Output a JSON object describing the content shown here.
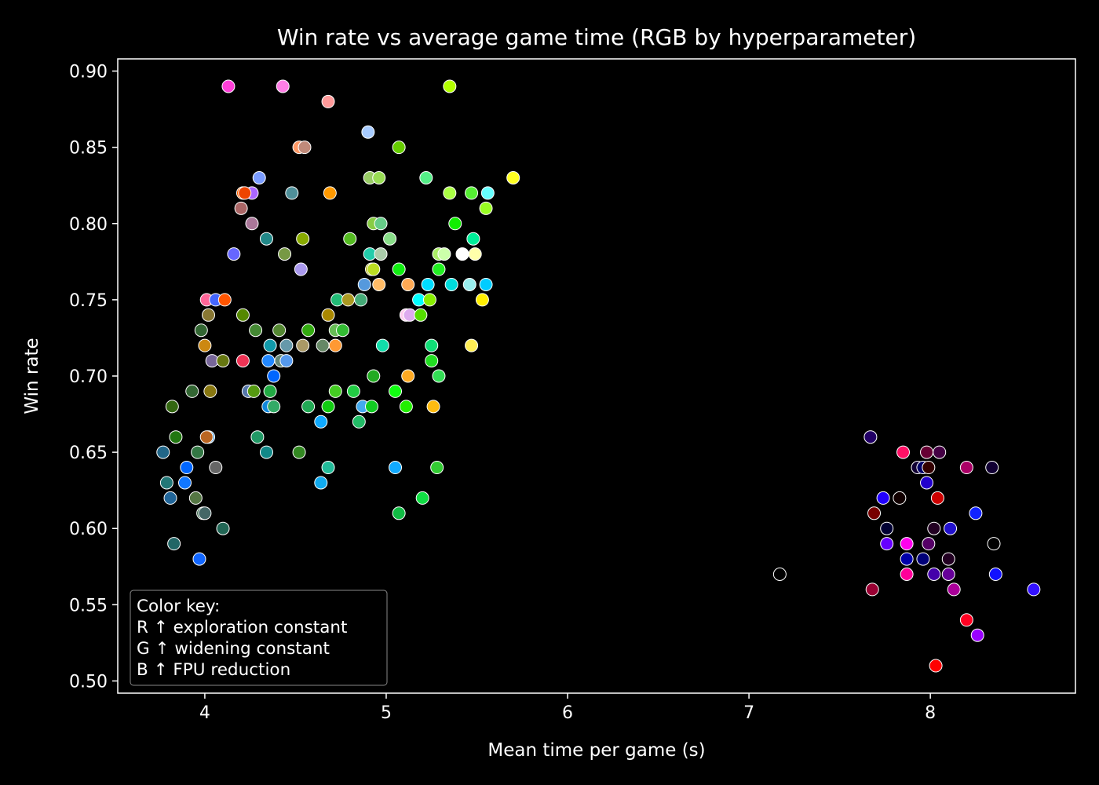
{
  "chart_data": {
    "type": "scatter",
    "title": "Win rate vs average game time (RGB by hyperparameter)",
    "xlabel": "Mean time per game (s)",
    "ylabel": "Win rate",
    "xlim": [
      3.52,
      8.8
    ],
    "ylim": [
      0.492,
      0.908
    ],
    "xticks": [
      4,
      5,
      6,
      7,
      8
    ],
    "yticks": [
      0.5,
      0.55,
      0.6,
      0.65,
      0.7,
      0.75,
      0.8,
      0.85,
      0.9
    ],
    "grid": false,
    "background": "#000000",
    "axis_color": "#ffffff",
    "marker_edge_color": "#ffffff",
    "legend": {
      "placement": "lower-left",
      "lines": [
        "Color key:",
        "R ↑ exploration constant",
        "G ↑ widening constant",
        "B ↑ FPU reduction"
      ]
    },
    "points": [
      {
        "x": 4.13,
        "y": 0.89,
        "color": "#ff3fd9"
      },
      {
        "x": 4.43,
        "y": 0.89,
        "color": "#ff7fe6"
      },
      {
        "x": 4.68,
        "y": 0.88,
        "color": "#ff9a9a"
      },
      {
        "x": 5.35,
        "y": 0.89,
        "color": "#b3ff00"
      },
      {
        "x": 4.9,
        "y": 0.86,
        "color": "#a8ccff"
      },
      {
        "x": 4.52,
        "y": 0.85,
        "color": "#ff9966"
      },
      {
        "x": 4.55,
        "y": 0.85,
        "color": "#c08a7a"
      },
      {
        "x": 5.07,
        "y": 0.85,
        "color": "#66cc00"
      },
      {
        "x": 4.3,
        "y": 0.83,
        "color": "#7a9cff"
      },
      {
        "x": 4.91,
        "y": 0.83,
        "color": "#99cc66"
      },
      {
        "x": 4.96,
        "y": 0.83,
        "color": "#99dd55"
      },
      {
        "x": 5.22,
        "y": 0.83,
        "color": "#55ee88"
      },
      {
        "x": 5.7,
        "y": 0.83,
        "color": "#ffff22"
      },
      {
        "x": 4.21,
        "y": 0.82,
        "color": "#ff6600"
      },
      {
        "x": 4.26,
        "y": 0.82,
        "color": "#aa66ff"
      },
      {
        "x": 4.22,
        "y": 0.82,
        "color": "#ee4400"
      },
      {
        "x": 4.48,
        "y": 0.82,
        "color": "#4f8f99"
      },
      {
        "x": 4.69,
        "y": 0.82,
        "color": "#ff9900"
      },
      {
        "x": 5.35,
        "y": 0.82,
        "color": "#aaff44"
      },
      {
        "x": 5.47,
        "y": 0.82,
        "color": "#55ee33"
      },
      {
        "x": 5.56,
        "y": 0.82,
        "color": "#66ffff"
      },
      {
        "x": 4.2,
        "y": 0.81,
        "color": "#aa6666"
      },
      {
        "x": 5.55,
        "y": 0.81,
        "color": "#99ff22"
      },
      {
        "x": 4.26,
        "y": 0.8,
        "color": "#aa7799"
      },
      {
        "x": 4.93,
        "y": 0.8,
        "color": "#88cc44"
      },
      {
        "x": 4.97,
        "y": 0.8,
        "color": "#66cc88"
      },
      {
        "x": 5.38,
        "y": 0.8,
        "color": "#11ee00"
      },
      {
        "x": 4.34,
        "y": 0.79,
        "color": "#228888"
      },
      {
        "x": 4.54,
        "y": 0.79,
        "color": "#88aa00"
      },
      {
        "x": 4.8,
        "y": 0.79,
        "color": "#55bb22"
      },
      {
        "x": 5.02,
        "y": 0.79,
        "color": "#88dd88"
      },
      {
        "x": 5.48,
        "y": 0.79,
        "color": "#00ee99"
      },
      {
        "x": 4.16,
        "y": 0.78,
        "color": "#6666ff"
      },
      {
        "x": 4.44,
        "y": 0.78,
        "color": "#779944"
      },
      {
        "x": 4.91,
        "y": 0.78,
        "color": "#22ccaa"
      },
      {
        "x": 4.97,
        "y": 0.78,
        "color": "#aaccaa"
      },
      {
        "x": 5.29,
        "y": 0.78,
        "color": "#aaee66"
      },
      {
        "x": 5.32,
        "y": 0.78,
        "color": "#ccffaa"
      },
      {
        "x": 5.42,
        "y": 0.78,
        "color": "#ffffff"
      },
      {
        "x": 5.49,
        "y": 0.78,
        "color": "#ffffaa"
      },
      {
        "x": 4.53,
        "y": 0.77,
        "color": "#aa99ee"
      },
      {
        "x": 4.92,
        "y": 0.77,
        "color": "#aaaa00"
      },
      {
        "x": 4.93,
        "y": 0.77,
        "color": "#bbdd22"
      },
      {
        "x": 5.07,
        "y": 0.77,
        "color": "#11ee11"
      },
      {
        "x": 5.29,
        "y": 0.77,
        "color": "#22ee22"
      },
      {
        "x": 4.88,
        "y": 0.76,
        "color": "#5599dd"
      },
      {
        "x": 4.96,
        "y": 0.76,
        "color": "#ffbb66"
      },
      {
        "x": 5.12,
        "y": 0.76,
        "color": "#ffaa55"
      },
      {
        "x": 5.23,
        "y": 0.76,
        "color": "#00ddff"
      },
      {
        "x": 5.36,
        "y": 0.76,
        "color": "#00dddd"
      },
      {
        "x": 5.46,
        "y": 0.76,
        "color": "#99eeee"
      },
      {
        "x": 5.55,
        "y": 0.76,
        "color": "#00ccff"
      },
      {
        "x": 4.01,
        "y": 0.75,
        "color": "#ff6699"
      },
      {
        "x": 4.06,
        "y": 0.75,
        "color": "#4466ff"
      },
      {
        "x": 4.11,
        "y": 0.75,
        "color": "#ff5500"
      },
      {
        "x": 4.73,
        "y": 0.75,
        "color": "#22bb77"
      },
      {
        "x": 4.79,
        "y": 0.75,
        "color": "#aa9922"
      },
      {
        "x": 4.86,
        "y": 0.75,
        "color": "#44aa77"
      },
      {
        "x": 5.18,
        "y": 0.75,
        "color": "#00ffff"
      },
      {
        "x": 5.24,
        "y": 0.75,
        "color": "#88ee00"
      },
      {
        "x": 5.53,
        "y": 0.75,
        "color": "#ffee00"
      },
      {
        "x": 4.02,
        "y": 0.74,
        "color": "#887733"
      },
      {
        "x": 4.21,
        "y": 0.74,
        "color": "#558800"
      },
      {
        "x": 4.68,
        "y": 0.74,
        "color": "#aa8800"
      },
      {
        "x": 5.11,
        "y": 0.74,
        "color": "#ffccee"
      },
      {
        "x": 5.13,
        "y": 0.74,
        "color": "#ddaaee"
      },
      {
        "x": 5.19,
        "y": 0.74,
        "color": "#55dd00"
      },
      {
        "x": 3.98,
        "y": 0.73,
        "color": "#336633"
      },
      {
        "x": 4.28,
        "y": 0.73,
        "color": "#448833"
      },
      {
        "x": 4.41,
        "y": 0.73,
        "color": "#558833"
      },
      {
        "x": 4.57,
        "y": 0.73,
        "color": "#33aa11"
      },
      {
        "x": 4.72,
        "y": 0.73,
        "color": "#66bb55"
      },
      {
        "x": 4.76,
        "y": 0.73,
        "color": "#33bb33"
      },
      {
        "x": 4.0,
        "y": 0.72,
        "color": "#cc8811"
      },
      {
        "x": 4.36,
        "y": 0.72,
        "color": "#1199aa"
      },
      {
        "x": 4.45,
        "y": 0.72,
        "color": "#6699aa"
      },
      {
        "x": 4.54,
        "y": 0.72,
        "color": "#aa9966"
      },
      {
        "x": 4.65,
        "y": 0.72,
        "color": "#668866"
      },
      {
        "x": 4.72,
        "y": 0.72,
        "color": "#ff9933"
      },
      {
        "x": 4.98,
        "y": 0.72,
        "color": "#11ddaa"
      },
      {
        "x": 5.25,
        "y": 0.72,
        "color": "#11dd77"
      },
      {
        "x": 5.47,
        "y": 0.72,
        "color": "#ffee55"
      },
      {
        "x": 4.04,
        "y": 0.71,
        "color": "#776699"
      },
      {
        "x": 4.1,
        "y": 0.71,
        "color": "#667711"
      },
      {
        "x": 4.21,
        "y": 0.71,
        "color": "#ee3355"
      },
      {
        "x": 4.35,
        "y": 0.71,
        "color": "#2288ff"
      },
      {
        "x": 4.42,
        "y": 0.71,
        "color": "#668877"
      },
      {
        "x": 4.45,
        "y": 0.71,
        "color": "#5599ee"
      },
      {
        "x": 5.25,
        "y": 0.71,
        "color": "#22dd22"
      },
      {
        "x": 4.38,
        "y": 0.7,
        "color": "#0066ff"
      },
      {
        "x": 4.93,
        "y": 0.7,
        "color": "#22aa22"
      },
      {
        "x": 5.12,
        "y": 0.7,
        "color": "#ffaa22"
      },
      {
        "x": 5.29,
        "y": 0.7,
        "color": "#33dd55"
      },
      {
        "x": 3.93,
        "y": 0.69,
        "color": "#336633"
      },
      {
        "x": 4.03,
        "y": 0.69,
        "color": "#887711"
      },
      {
        "x": 4.24,
        "y": 0.69,
        "color": "#5577aa"
      },
      {
        "x": 4.27,
        "y": 0.69,
        "color": "#559911"
      },
      {
        "x": 4.36,
        "y": 0.69,
        "color": "#22aa44"
      },
      {
        "x": 4.72,
        "y": 0.69,
        "color": "#44cc22"
      },
      {
        "x": 4.82,
        "y": 0.69,
        "color": "#22cc44"
      },
      {
        "x": 5.05,
        "y": 0.69,
        "color": "#11ff11"
      },
      {
        "x": 3.82,
        "y": 0.68,
        "color": "#336611"
      },
      {
        "x": 4.35,
        "y": 0.68,
        "color": "#1188dd"
      },
      {
        "x": 4.38,
        "y": 0.68,
        "color": "#33aa66"
      },
      {
        "x": 4.57,
        "y": 0.68,
        "color": "#22aa55"
      },
      {
        "x": 4.68,
        "y": 0.68,
        "color": "#11cc11"
      },
      {
        "x": 4.87,
        "y": 0.68,
        "color": "#44aaee"
      },
      {
        "x": 4.92,
        "y": 0.68,
        "color": "#11cc22"
      },
      {
        "x": 5.11,
        "y": 0.68,
        "color": "#22ee00"
      },
      {
        "x": 5.26,
        "y": 0.68,
        "color": "#ffbb11"
      },
      {
        "x": 4.64,
        "y": 0.67,
        "color": "#11aaff"
      },
      {
        "x": 4.85,
        "y": 0.67,
        "color": "#22bb66"
      },
      {
        "x": 3.84,
        "y": 0.66,
        "color": "#227711"
      },
      {
        "x": 4.02,
        "y": 0.66,
        "color": "#4499dd"
      },
      {
        "x": 4.01,
        "y": 0.66,
        "color": "#bb6622"
      },
      {
        "x": 4.29,
        "y": 0.66,
        "color": "#229966"
      },
      {
        "x": 3.77,
        "y": 0.65,
        "color": "#226688"
      },
      {
        "x": 3.96,
        "y": 0.65,
        "color": "#337744"
      },
      {
        "x": 4.34,
        "y": 0.65,
        "color": "#118888"
      },
      {
        "x": 4.52,
        "y": 0.65,
        "color": "#338822"
      },
      {
        "x": 3.9,
        "y": 0.64,
        "color": "#0066ff"
      },
      {
        "x": 4.06,
        "y": 0.64,
        "color": "#666666"
      },
      {
        "x": 4.68,
        "y": 0.64,
        "color": "#22bb99"
      },
      {
        "x": 5.05,
        "y": 0.64,
        "color": "#11aaff"
      },
      {
        "x": 5.28,
        "y": 0.64,
        "color": "#33cc33"
      },
      {
        "x": 3.79,
        "y": 0.63,
        "color": "#227777"
      },
      {
        "x": 3.89,
        "y": 0.63,
        "color": "#1177ff"
      },
      {
        "x": 4.64,
        "y": 0.63,
        "color": "#11aaee"
      },
      {
        "x": 3.81,
        "y": 0.62,
        "color": "#226699"
      },
      {
        "x": 3.95,
        "y": 0.62,
        "color": "#557744"
      },
      {
        "x": 5.2,
        "y": 0.62,
        "color": "#11dd44"
      },
      {
        "x": 3.99,
        "y": 0.61,
        "color": "#336644"
      },
      {
        "x": 4.0,
        "y": 0.61,
        "color": "#446666"
      },
      {
        "x": 5.07,
        "y": 0.61,
        "color": "#11bb44"
      },
      {
        "x": 4.1,
        "y": 0.6,
        "color": "#226655"
      },
      {
        "x": 3.83,
        "y": 0.59,
        "color": "#226666"
      },
      {
        "x": 3.97,
        "y": 0.58,
        "color": "#1166ff"
      },
      {
        "x": 7.17,
        "y": 0.57,
        "color": "#000000"
      },
      {
        "x": 7.67,
        "y": 0.66,
        "color": "#220066"
      },
      {
        "x": 7.85,
        "y": 0.65,
        "color": "#ff1166"
      },
      {
        "x": 7.98,
        "y": 0.65,
        "color": "#660033"
      },
      {
        "x": 8.05,
        "y": 0.65,
        "color": "#440044"
      },
      {
        "x": 7.93,
        "y": 0.64,
        "color": "#110033"
      },
      {
        "x": 7.96,
        "y": 0.64,
        "color": "#000066"
      },
      {
        "x": 7.99,
        "y": 0.64,
        "color": "#330000"
      },
      {
        "x": 8.2,
        "y": 0.64,
        "color": "#aa0066"
      },
      {
        "x": 8.34,
        "y": 0.64,
        "color": "#110033"
      },
      {
        "x": 7.98,
        "y": 0.63,
        "color": "#2200cc"
      },
      {
        "x": 7.74,
        "y": 0.62,
        "color": "#2200ff"
      },
      {
        "x": 7.83,
        "y": 0.62,
        "color": "#110000"
      },
      {
        "x": 8.04,
        "y": 0.62,
        "color": "#cc0000"
      },
      {
        "x": 7.69,
        "y": 0.61,
        "color": "#770000"
      },
      {
        "x": 8.25,
        "y": 0.61,
        "color": "#1122ff"
      },
      {
        "x": 7.76,
        "y": 0.6,
        "color": "#000033"
      },
      {
        "x": 8.02,
        "y": 0.6,
        "color": "#220022"
      },
      {
        "x": 8.11,
        "y": 0.6,
        "color": "#2211cc"
      },
      {
        "x": 7.76,
        "y": 0.59,
        "color": "#6600ff"
      },
      {
        "x": 7.87,
        "y": 0.59,
        "color": "#ff00ee"
      },
      {
        "x": 7.99,
        "y": 0.59,
        "color": "#550066"
      },
      {
        "x": 8.35,
        "y": 0.59,
        "color": "#000000"
      },
      {
        "x": 7.87,
        "y": 0.58,
        "color": "#0000aa"
      },
      {
        "x": 7.96,
        "y": 0.58,
        "color": "#000077"
      },
      {
        "x": 8.1,
        "y": 0.58,
        "color": "#220022"
      },
      {
        "x": 7.87,
        "y": 0.57,
        "color": "#ff0099"
      },
      {
        "x": 8.02,
        "y": 0.57,
        "color": "#4400aa"
      },
      {
        "x": 8.1,
        "y": 0.57,
        "color": "#660099"
      },
      {
        "x": 8.36,
        "y": 0.57,
        "color": "#1111ff"
      },
      {
        "x": 7.68,
        "y": 0.56,
        "color": "#990033"
      },
      {
        "x": 8.13,
        "y": 0.56,
        "color": "#aa0099"
      },
      {
        "x": 8.57,
        "y": 0.56,
        "color": "#3311ff"
      },
      {
        "x": 8.2,
        "y": 0.54,
        "color": "#ff0022"
      },
      {
        "x": 8.26,
        "y": 0.53,
        "color": "#9900ff"
      },
      {
        "x": 8.03,
        "y": 0.51,
        "color": "#ff0000"
      }
    ]
  }
}
